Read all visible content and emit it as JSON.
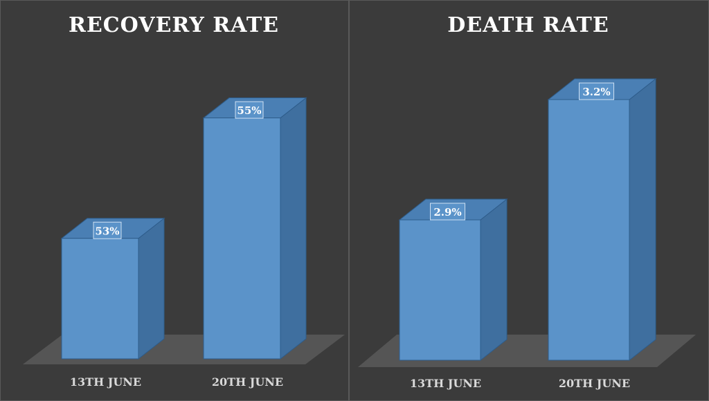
{
  "chart_data": [
    {
      "type": "bar",
      "style": "3d-column",
      "title": "RECOVERY RATE",
      "categories": [
        "13TH JUNE",
        "20TH JUNE"
      ],
      "values": [
        53,
        55
      ],
      "value_labels": [
        "53%",
        "55%"
      ],
      "unit": "%",
      "ylim": [
        51,
        55.5
      ],
      "grid": false,
      "legend": "none"
    },
    {
      "type": "bar",
      "style": "3d-column",
      "title": "DEATH RATE",
      "categories": [
        "13TH JUNE",
        "20TH JUNE"
      ],
      "values": [
        2.9,
        3.2
      ],
      "value_labels": [
        "2.9%",
        "3.2%"
      ],
      "unit": "%",
      "ylim": [
        2.55,
        3.25
      ],
      "grid": false,
      "legend": "none"
    }
  ],
  "colors": {
    "background": "#3b3b3b",
    "floor": "#595959",
    "bar_front": "#5b93c9",
    "bar_side": "#3f6f9f",
    "bar_top": "#4a7fb4",
    "bar_edge": "#2e5c8a",
    "label_box": "#5b93c9",
    "label_text": "#ffffff",
    "title_text": "#ffffff",
    "tick_text": "#d9d9d9"
  }
}
